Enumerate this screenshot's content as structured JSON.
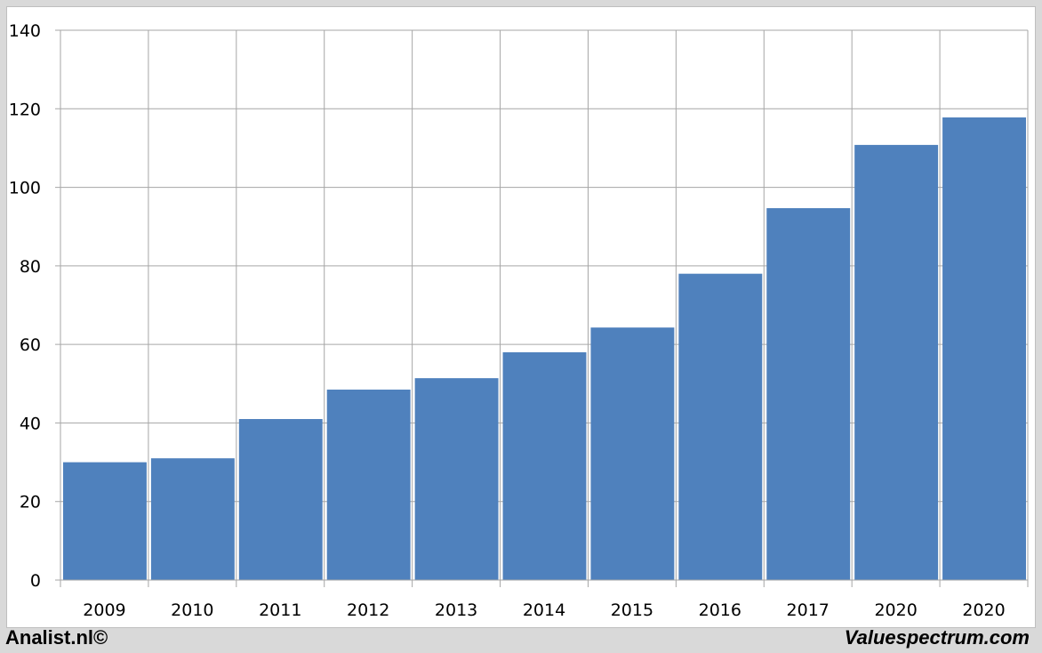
{
  "chart_data": {
    "type": "bar",
    "categories": [
      "2009",
      "2010",
      "2011",
      "2012",
      "2013",
      "2014",
      "2015",
      "2016",
      "2017",
      "2020",
      "2020"
    ],
    "values": [
      30,
      31,
      41,
      48.5,
      51.4,
      58,
      64.3,
      78,
      94.7,
      110.8,
      117.8
    ],
    "ylim": [
      0,
      140
    ],
    "yticks": [
      0,
      20,
      40,
      60,
      80,
      100,
      120,
      140
    ],
    "grid": true,
    "bar_color": "#4f81bd"
  },
  "footer": {
    "left": "Analist.nl©",
    "right": "Valuespectrum.com"
  }
}
